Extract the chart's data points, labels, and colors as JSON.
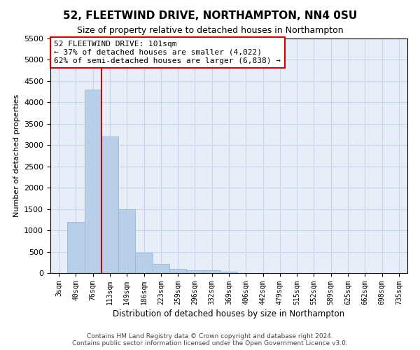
{
  "title": "52, FLEETWIND DRIVE, NORTHAMPTON, NN4 0SU",
  "subtitle": "Size of property relative to detached houses in Northampton",
  "xlabel": "Distribution of detached houses by size in Northampton",
  "ylabel": "Number of detached properties",
  "bin_labels": [
    "3sqm",
    "40sqm",
    "76sqm",
    "113sqm",
    "149sqm",
    "186sqm",
    "223sqm",
    "259sqm",
    "296sqm",
    "332sqm",
    "369sqm",
    "406sqm",
    "442sqm",
    "479sqm",
    "515sqm",
    "552sqm",
    "589sqm",
    "625sqm",
    "662sqm",
    "698sqm",
    "735sqm"
  ],
  "bar_heights": [
    0,
    1200,
    4300,
    3200,
    1500,
    480,
    220,
    100,
    70,
    60,
    30,
    0,
    0,
    0,
    0,
    0,
    0,
    0,
    0,
    0,
    0
  ],
  "bar_color": "#b8cfe8",
  "bar_edge_color": "#9ab5d8",
  "grid_color": "#c8d4e8",
  "background_color": "#e8eef8",
  "vline_x": 2.5,
  "vline_color": "#cc0000",
  "annotation_text": "52 FLEETWIND DRIVE: 101sqm\n← 37% of detached houses are smaller (4,022)\n62% of semi-detached houses are larger (6,838) →",
  "annotation_box_color": "#ffffff",
  "annotation_box_edge": "#cc0000",
  "ylim": [
    0,
    5500
  ],
  "yticks": [
    0,
    500,
    1000,
    1500,
    2000,
    2500,
    3000,
    3500,
    4000,
    4500,
    5000,
    5500
  ],
  "footer_line1": "Contains HM Land Registry data © Crown copyright and database right 2024.",
  "footer_line2": "Contains public sector information licensed under the Open Government Licence v3.0."
}
